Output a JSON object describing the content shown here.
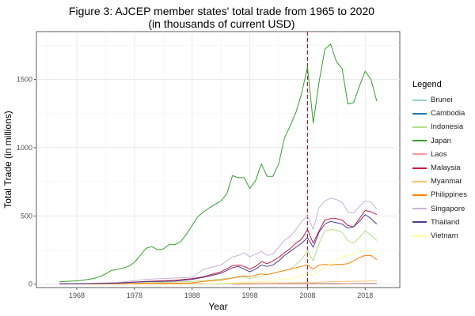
{
  "chart_data": {
    "type": "line",
    "title": "Figure 3: AJCEP member states' total trade from 1965 to 2020",
    "subtitle": "(in thousands of current USD)",
    "xlabel": "Year",
    "ylabel": "Total Trade (in millions)",
    "xlim": [
      1961,
      2024
    ],
    "ylim": [
      -25,
      1850
    ],
    "xticks": [
      1968,
      1978,
      1988,
      1998,
      2008,
      2018
    ],
    "yticks": [
      0,
      500,
      1000,
      1500
    ],
    "grid": true,
    "vline": {
      "x": 2008,
      "color": "#b2182b",
      "style": "dashed"
    },
    "legend": {
      "title": "Legend",
      "position": "right"
    },
    "series": [
      {
        "name": "Brunei",
        "color": "#8dd3c7",
        "x": [
          1980,
          1990,
          2000,
          2008,
          2009,
          2012,
          2015,
          2020
        ],
        "y": [
          2,
          3,
          3,
          5,
          4,
          6,
          5,
          4
        ]
      },
      {
        "name": "Cambodia",
        "color": "#1f78b4",
        "x": [
          1995,
          2000,
          2008,
          2009,
          2012,
          2015,
          2018,
          2020
        ],
        "y": [
          1,
          1,
          2,
          2,
          3,
          4,
          5,
          5
        ]
      },
      {
        "name": "Indonesia",
        "color": "#b2df8a",
        "x": [
          1965,
          1970,
          1975,
          1980,
          1985,
          1990,
          1995,
          1997,
          1998,
          2000,
          2005,
          2007,
          2008,
          2009,
          2010,
          2011,
          2012,
          2013,
          2014,
          2015,
          2016,
          2017,
          2018,
          2019,
          2020
        ],
        "y": [
          1,
          2,
          3,
          10,
          15,
          25,
          45,
          55,
          40,
          60,
          110,
          180,
          250,
          170,
          300,
          390,
          400,
          395,
          380,
          320,
          300,
          340,
          390,
          360,
          320
        ]
      },
      {
        "name": "Japan",
        "color": "#33a02c",
        "x": [
          1965,
          1966,
          1967,
          1968,
          1969,
          1970,
          1971,
          1972,
          1973,
          1974,
          1975,
          1976,
          1977,
          1978,
          1979,
          1980,
          1981,
          1982,
          1983,
          1984,
          1985,
          1986,
          1987,
          1988,
          1989,
          1990,
          1991,
          1992,
          1993,
          1994,
          1995,
          1996,
          1997,
          1998,
          1999,
          2000,
          2001,
          2002,
          2003,
          2004,
          2005,
          2006,
          2007,
          2008,
          2009,
          2010,
          2011,
          2012,
          2013,
          2014,
          2015,
          2016,
          2017,
          2018,
          2019,
          2020
        ],
        "y": [
          17,
          20,
          22,
          24,
          28,
          35,
          42,
          55,
          75,
          100,
          108,
          118,
          130,
          160,
          210,
          262,
          275,
          252,
          258,
          290,
          290,
          310,
          365,
          430,
          495,
          530,
          560,
          585,
          610,
          660,
          795,
          780,
          780,
          700,
          760,
          880,
          790,
          790,
          880,
          1070,
          1160,
          1260,
          1400,
          1590,
          1180,
          1480,
          1720,
          1760,
          1630,
          1580,
          1320,
          1330,
          1450,
          1560,
          1500,
          1340
        ]
      },
      {
        "name": "Laos",
        "color": "#fb9a99",
        "x": [
          1995,
          2000,
          2008,
          2009,
          2012,
          2015,
          2018,
          2020
        ],
        "y": [
          0,
          1,
          2,
          2,
          3,
          4,
          5,
          5
        ]
      },
      {
        "name": "Malaysia",
        "color": "#c51b3a",
        "x": [
          1965,
          1970,
          1975,
          1980,
          1985,
          1988,
          1990,
          1993,
          1995,
          1996,
          1997,
          1998,
          1999,
          2000,
          2001,
          2002,
          2003,
          2004,
          2005,
          2006,
          2007,
          2008,
          2009,
          2010,
          2011,
          2012,
          2013,
          2014,
          2015,
          2016,
          2017,
          2018,
          2019,
          2020
        ],
        "y": [
          2,
          4,
          8,
          20,
          28,
          40,
          55,
          90,
          135,
          140,
          130,
          110,
          130,
          165,
          150,
          170,
          195,
          230,
          260,
          300,
          330,
          400,
          300,
          390,
          470,
          480,
          480,
          470,
          430,
          420,
          480,
          540,
          530,
          510
        ]
      },
      {
        "name": "Myanmar",
        "color": "#fdbf6f",
        "x": [
          1965,
          1975,
          1985,
          1995,
          2000,
          2005,
          2008,
          2009,
          2010,
          2012,
          2015,
          2018,
          2020
        ],
        "y": [
          1,
          2,
          3,
          5,
          8,
          10,
          12,
          10,
          14,
          18,
          20,
          22,
          25
        ]
      },
      {
        "name": "Philippines",
        "color": "#ff7f00",
        "x": [
          1965,
          1970,
          1975,
          1980,
          1985,
          1988,
          1990,
          1993,
          1995,
          1996,
          1997,
          1998,
          1999,
          2000,
          2001,
          2002,
          2003,
          2004,
          2005,
          2006,
          2007,
          2008,
          2009,
          2010,
          2011,
          2012,
          2013,
          2014,
          2015,
          2016,
          2017,
          2018,
          2019,
          2020
        ],
        "y": [
          1,
          2,
          3,
          5,
          6,
          10,
          20,
          30,
          45,
          55,
          60,
          55,
          65,
          75,
          70,
          80,
          90,
          100,
          110,
          120,
          130,
          140,
          110,
          140,
          145,
          140,
          145,
          145,
          150,
          170,
          195,
          210,
          210,
          180
        ]
      },
      {
        "name": "Singapore",
        "color": "#cab2d6",
        "x": [
          1965,
          1970,
          1975,
          1980,
          1985,
          1988,
          1990,
          1993,
          1995,
          1996,
          1997,
          1998,
          1999,
          2000,
          2001,
          2002,
          2003,
          2004,
          2005,
          2006,
          2007,
          2008,
          2009,
          2010,
          2011,
          2012,
          2013,
          2014,
          2015,
          2016,
          2017,
          2018,
          2019,
          2020
        ],
        "y": [
          3,
          5,
          12,
          35,
          45,
          50,
          110,
          140,
          200,
          210,
          230,
          200,
          220,
          240,
          210,
          220,
          270,
          320,
          350,
          400,
          460,
          500,
          400,
          560,
          610,
          630,
          620,
          600,
          530,
          520,
          570,
          610,
          600,
          550
        ]
      },
      {
        "name": "Thailand",
        "color": "#4b3b9a",
        "x": [
          1965,
          1970,
          1975,
          1980,
          1985,
          1988,
          1990,
          1993,
          1995,
          1996,
          1997,
          1998,
          1999,
          2000,
          2001,
          2002,
          2003,
          2004,
          2005,
          2006,
          2007,
          2008,
          2009,
          2010,
          2011,
          2012,
          2013,
          2014,
          2015,
          2016,
          2017,
          2018,
          2019,
          2020
        ],
        "y": [
          2,
          4,
          8,
          18,
          22,
          35,
          50,
          80,
          120,
          130,
          110,
          90,
          110,
          140,
          130,
          140,
          170,
          210,
          240,
          270,
          300,
          340,
          270,
          380,
          440,
          460,
          450,
          440,
          410,
          420,
          460,
          510,
          480,
          440
        ]
      },
      {
        "name": "Vietnam",
        "color": "#ffff99",
        "x": [
          1990,
          1995,
          2000,
          2005,
          2008,
          2009,
          2010,
          2012,
          2014,
          2015,
          2016,
          2018,
          2020
        ],
        "y": [
          2,
          10,
          20,
          40,
          80,
          60,
          100,
          150,
          200,
          210,
          220,
          250,
          250
        ]
      }
    ]
  }
}
